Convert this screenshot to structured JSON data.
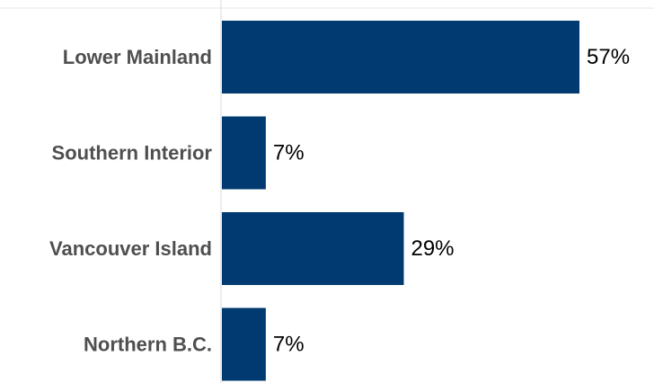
{
  "chart_data": {
    "type": "bar",
    "orientation": "horizontal",
    "categories": [
      "Lower Mainland",
      "Southern Interior",
      "Vancouver Island",
      "Northern B.C."
    ],
    "values": [
      57,
      7,
      29,
      7
    ],
    "value_labels": [
      "57%",
      "7%",
      "29%",
      "7%"
    ],
    "unit": "%",
    "xlim": [
      0,
      70
    ],
    "grid": false,
    "legend": "none",
    "bar_color": "#003a70",
    "axis_line_color": "#d9d9d9",
    "category_label_color": "#4f4f4f",
    "value_label_color": "#000000"
  }
}
